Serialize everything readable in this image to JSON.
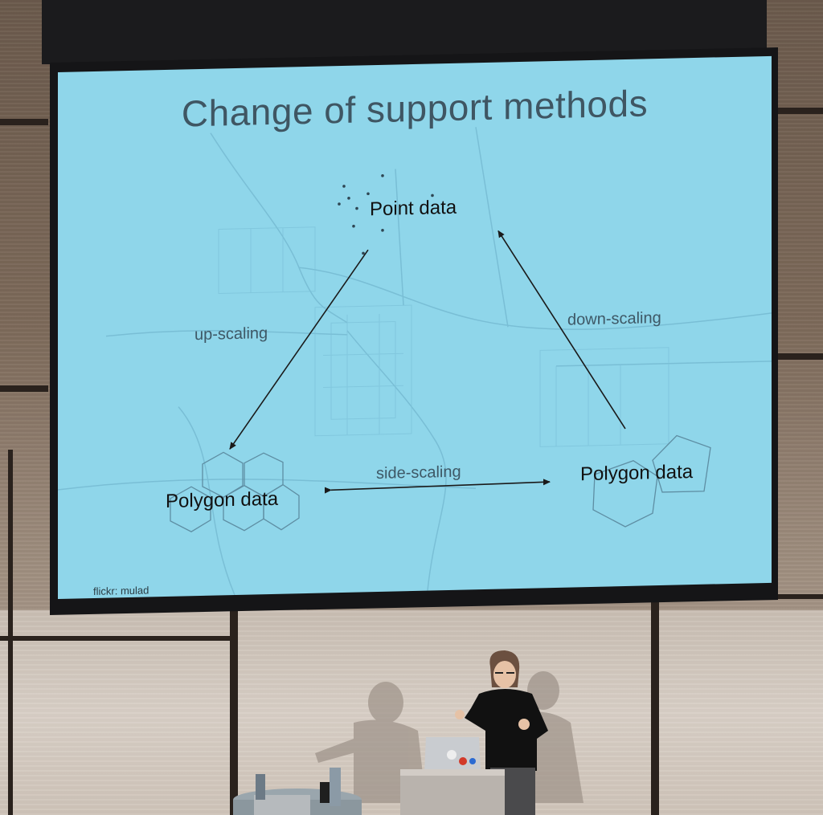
{
  "slide": {
    "title": "Change of support methods",
    "nodes": {
      "point": "Point data",
      "polygon_left": "Polygon data",
      "polygon_right": "Polygon data"
    },
    "edges": {
      "up": "up-scaling",
      "down": "down-scaling",
      "side": "side-scaling"
    },
    "credit": "flickr: mulad"
  },
  "colors": {
    "slide_background": "#8fd6ea",
    "title_text": "#3f5663",
    "arrow": "#1a1a1a",
    "map_lines": "#6fb3cc"
  }
}
